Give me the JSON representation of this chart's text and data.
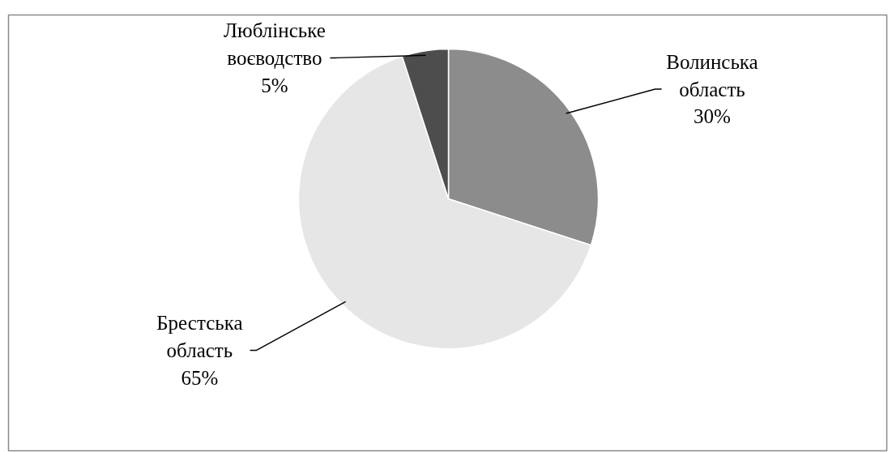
{
  "chart_data": {
    "type": "pie",
    "categories": [
      "Волинська область",
      "Брестська область",
      "Люблінське воєводство"
    ],
    "values": [
      30,
      65,
      5
    ],
    "value_labels": [
      "30%",
      "65%",
      "5%"
    ],
    "colors": [
      "#8c8c8c",
      "#e6e6e6",
      "#4d4d4d"
    ]
  }
}
